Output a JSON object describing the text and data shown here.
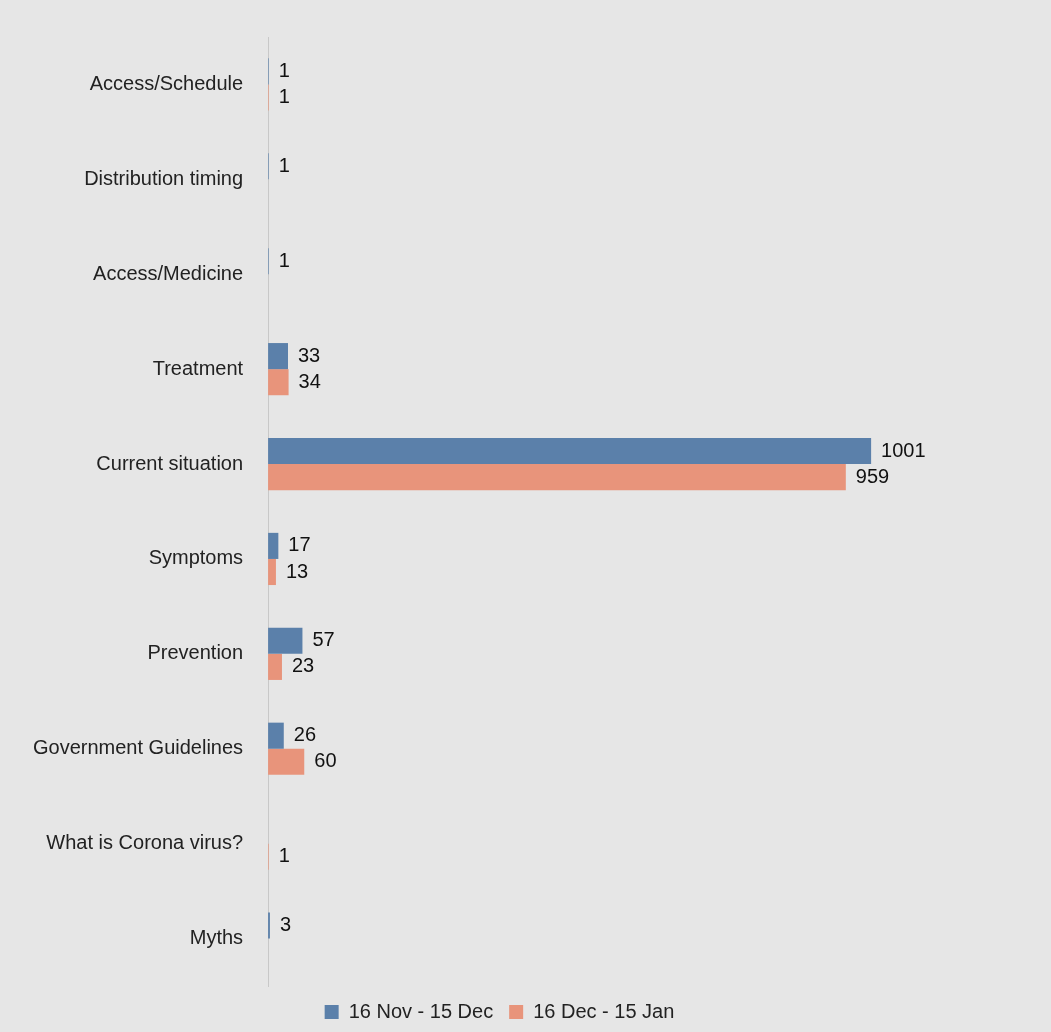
{
  "chart_data": {
    "type": "bar",
    "orientation": "horizontal",
    "categories": [
      "Access/Schedule",
      "Distribution timing",
      "Access/Medicine",
      "Treatment",
      "Current situation",
      "Symptoms",
      "Prevention",
      "Government Guidelines",
      "What is Corona virus?",
      "Myths"
    ],
    "series": [
      {
        "name": "16 Nov - 15 Dec",
        "color": "#5b80aa",
        "values": [
          1,
          1,
          1,
          33,
          1001,
          17,
          57,
          26,
          null,
          3
        ]
      },
      {
        "name": "16 Dec - 15 Jan",
        "color": "#e8947b",
        "values": [
          1,
          null,
          null,
          34,
          959,
          13,
          23,
          60,
          1,
          null
        ]
      }
    ],
    "tick_labels": "y",
    "data_labels": true,
    "legend": "bottom"
  }
}
